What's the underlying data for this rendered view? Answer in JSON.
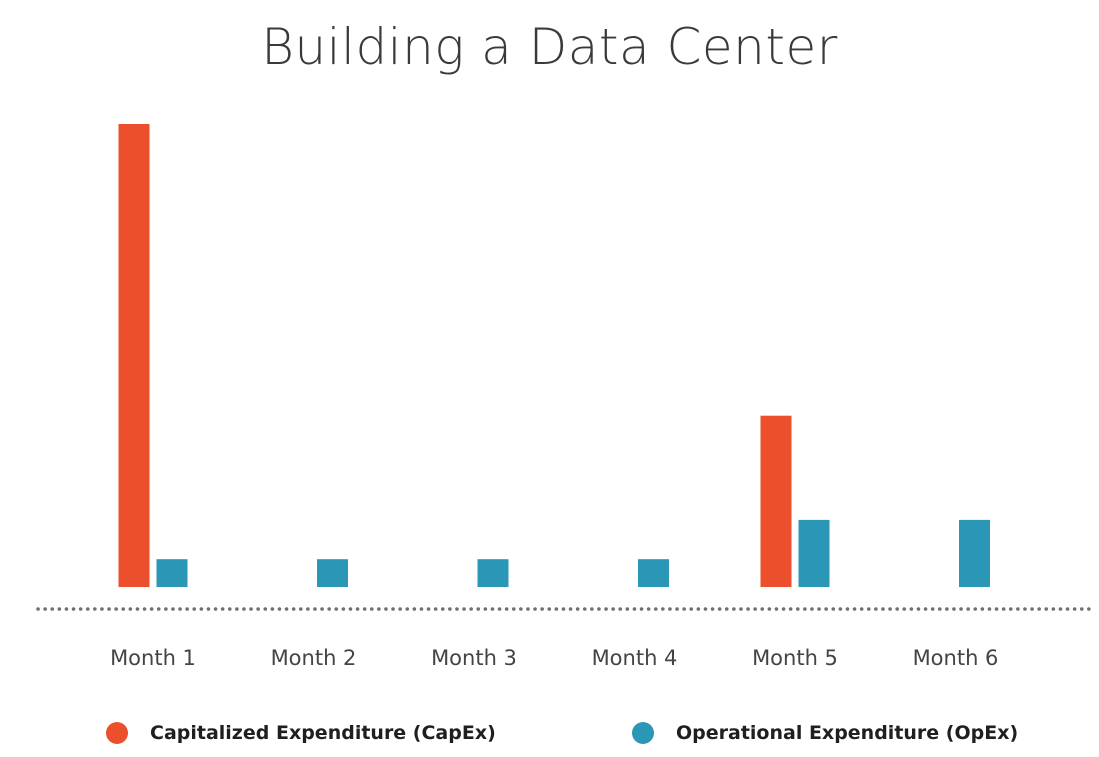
{
  "chart_data": {
    "type": "bar",
    "title": "Building a Data Center",
    "xlabel": "",
    "ylabel": "",
    "categories": [
      "Month 1",
      "Month 2",
      "Month 3",
      "Month 4",
      "Month 5",
      "Month 6"
    ],
    "series": [
      {
        "name": "Capitalized Expenditure (CapEx)",
        "color": "#eb4f2b",
        "values": [
          100,
          0,
          0,
          0,
          37,
          0
        ]
      },
      {
        "name": "Operational Expenditure (OpEx)",
        "color": "#2a97b6",
        "values": [
          6,
          6,
          6,
          6,
          14.5,
          14.5
        ]
      }
    ],
    "ylim": [
      0,
      100
    ],
    "grid": false,
    "legend_position": "bottom",
    "baseline_style": "dotted"
  }
}
